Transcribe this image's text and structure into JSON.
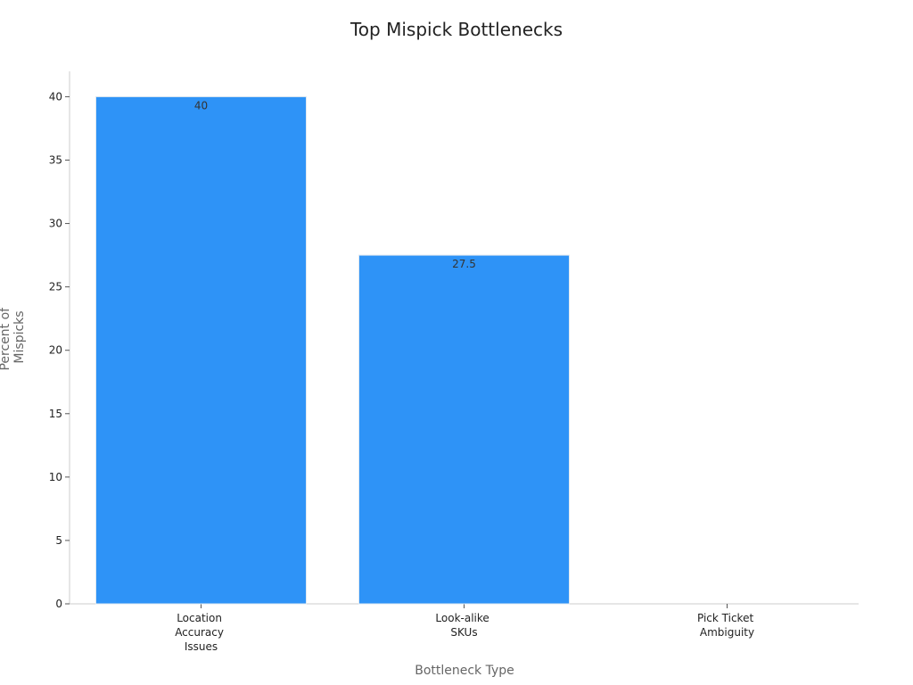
{
  "chart_data": {
    "type": "bar",
    "title": "Top Mispick Bottlenecks",
    "x_label": "Bottleneck Type",
    "y_label": "Percent of Mispicks",
    "categories": [
      "Location Accuracy Issues",
      "Look-alike SKUs",
      "Pick Ticket Ambiguity"
    ],
    "values": [
      40,
      27.5,
      null
    ],
    "color": "#2e93f7",
    "ylim": [
      0,
      42
    ],
    "yticks": [
      0,
      5,
      10,
      15,
      20,
      25,
      30,
      35,
      40
    ],
    "grid": false
  }
}
